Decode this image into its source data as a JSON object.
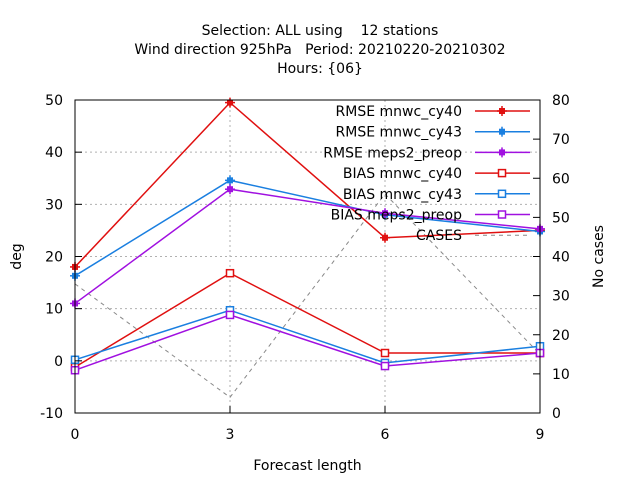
{
  "chart_data": {
    "type": "line",
    "title_lines": [
      "Selection: ALL using    12 stations",
      "Wind direction 925hPa   Period: 20210220-20210302",
      "Hours: {06}"
    ],
    "xlabel": "Forecast length",
    "ylabel": "deg",
    "y2label": "No cases",
    "x": [
      0,
      3,
      6,
      9
    ],
    "xlim": [
      0,
      9
    ],
    "ylim": [
      -10,
      50
    ],
    "y2lim": [
      0,
      80
    ],
    "xticks": [
      0,
      3,
      6,
      9
    ],
    "yticks": [
      -10,
      0,
      10,
      20,
      30,
      40,
      50
    ],
    "y2ticks": [
      0,
      10,
      20,
      30,
      40,
      50,
      60,
      70,
      80
    ],
    "grid": true,
    "legend_position": "top-right",
    "series": [
      {
        "name": "RMSE mnwc_cy40",
        "color": "#e01010",
        "marker": "filled-square",
        "axis": "y",
        "values": [
          18.0,
          49.5,
          23.6,
          25.0
        ]
      },
      {
        "name": "RMSE mnwc_cy43",
        "color": "#1a7fe0",
        "marker": "filled-square",
        "axis": "y",
        "values": [
          16.3,
          34.6,
          28.0,
          24.8
        ]
      },
      {
        "name": "RMSE meps2_preop",
        "color": "#a010e0",
        "marker": "filled-square",
        "axis": "y",
        "values": [
          11.0,
          32.9,
          28.3,
          25.3
        ]
      },
      {
        "name": "BIAS mnwc_cy40",
        "color": "#e01010",
        "marker": "open-square",
        "axis": "y",
        "values": [
          -1.2,
          16.8,
          1.5,
          1.5
        ]
      },
      {
        "name": "BIAS mnwc_cy43",
        "color": "#1a7fe0",
        "marker": "open-square",
        "axis": "y",
        "values": [
          0.2,
          9.7,
          -0.4,
          2.8
        ]
      },
      {
        "name": "BIAS meps2_preop",
        "color": "#a010e0",
        "marker": "open-square",
        "axis": "y",
        "values": [
          -1.8,
          8.8,
          -1.0,
          1.5
        ]
      },
      {
        "name": "CASES",
        "color": "#888888",
        "marker": "none",
        "dash": true,
        "axis": "y2",
        "values": [
          33,
          4,
          56,
          15
        ]
      }
    ]
  }
}
